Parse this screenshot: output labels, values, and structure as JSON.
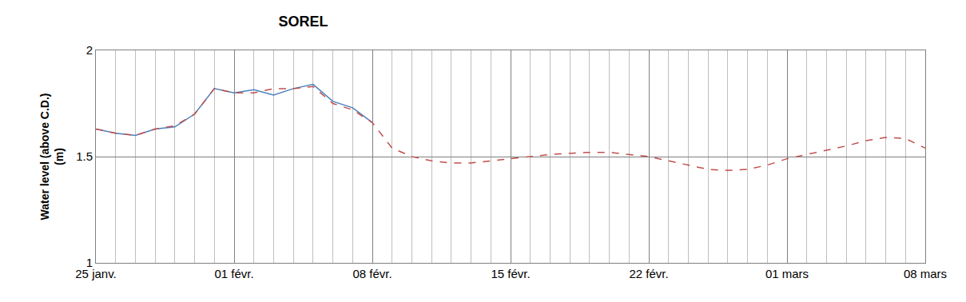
{
  "chart_data": {
    "type": "line",
    "title": "SOREL",
    "ylabel": "Water level (above C.D.)\n(m)",
    "categories": [
      "25 janv.",
      null,
      null,
      null,
      null,
      null,
      null,
      "01 févr.",
      null,
      null,
      null,
      null,
      null,
      null,
      "08 févr.",
      null,
      null,
      null,
      null,
      null,
      null,
      "15 févr.",
      null,
      null,
      null,
      null,
      null,
      null,
      "22 févr.",
      null,
      null,
      null,
      null,
      null,
      null,
      "01 mars",
      null,
      null,
      null,
      null,
      null,
      null,
      "08 mars"
    ],
    "series": [
      {
        "color": "#4f81bd",
        "line_style": "solid",
        "values": [
          1.63,
          1.61,
          1.6,
          1.63,
          1.64,
          1.7,
          1.82,
          1.8,
          1.815,
          1.79,
          1.82,
          1.84,
          1.76,
          1.73,
          1.66,
          null,
          null,
          null,
          null,
          null,
          null,
          null,
          null,
          null,
          null,
          null,
          null,
          null,
          null,
          null,
          null,
          null,
          null,
          null,
          null,
          null,
          null,
          null,
          null,
          null,
          null,
          null,
          null
        ]
      },
      {
        "color": "#c0504d",
        "line_style": "dash",
        "values": [
          1.63,
          1.61,
          1.6,
          1.63,
          1.645,
          1.7,
          1.82,
          1.8,
          1.8,
          1.82,
          1.82,
          1.83,
          1.75,
          1.72,
          1.66,
          1.54,
          1.5,
          1.48,
          1.47,
          1.47,
          1.48,
          1.49,
          1.5,
          1.51,
          1.515,
          1.52,
          1.52,
          1.51,
          1.5,
          1.48,
          1.46,
          1.44,
          1.435,
          1.44,
          1.46,
          1.49,
          1.51,
          1.53,
          1.55,
          1.575,
          1.59,
          1.585,
          1.54
        ]
      }
    ],
    "ylim": [
      1,
      2
    ],
    "yticks": [
      1,
      1.5,
      2
    ],
    "grid": true
  }
}
